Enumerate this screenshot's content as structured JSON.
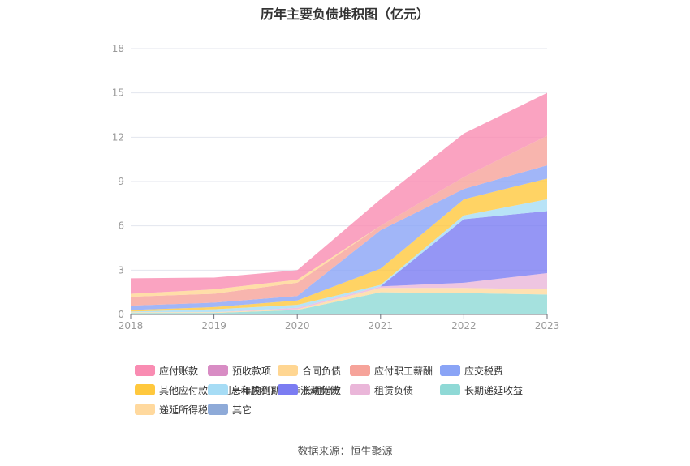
{
  "chart_data": {
    "type": "area",
    "stacked": true,
    "title": "历年主要负债堆积图（亿元）",
    "source": "数据来源：恒生聚源",
    "x": [
      "2018",
      "2019",
      "2020",
      "2021",
      "2022",
      "2023"
    ],
    "ylim": [
      0,
      18
    ],
    "yticks": [
      0,
      3,
      6,
      9,
      12,
      15,
      18
    ],
    "grid": true,
    "legend_position": "bottom",
    "series": [
      {
        "name": "长期递延收益",
        "color": "#8fd9d6",
        "values": [
          0.1,
          0.1,
          0.3,
          1.5,
          1.45,
          1.35
        ]
      },
      {
        "name": "递延所得税负债",
        "color": "#ffd99e",
        "values": [
          0.05,
          0.05,
          0.05,
          0.3,
          0.35,
          0.35
        ]
      },
      {
        "name": "其它",
        "color": "#8eaad8",
        "values": [
          0,
          0,
          0,
          0,
          0,
          0
        ]
      },
      {
        "name": "租赁负债",
        "color": "#eab6d9",
        "values": [
          0,
          0,
          0.1,
          0.1,
          0.35,
          1.1
        ]
      },
      {
        "name": "长期借款",
        "color": "#7b7cf2",
        "values": [
          0,
          0,
          0,
          0,
          4.3,
          4.2
        ]
      },
      {
        "name": "一年内到期的非流动负债",
        "color": "#a6dcf5",
        "values": [
          0.05,
          0.2,
          0.2,
          0.1,
          0.25,
          0.8
        ]
      },
      {
        "name": "其他应付款(含利息和股利)",
        "color": "#ffc83d",
        "values": [
          0.1,
          0.15,
          0.3,
          1.1,
          1.1,
          1.4
        ]
      },
      {
        "name": "应交税费",
        "color": "#8aa4f6",
        "values": [
          0.3,
          0.3,
          0.3,
          2.6,
          0.7,
          0.9
        ]
      },
      {
        "name": "应付职工薪酬",
        "color": "#f6a39a",
        "values": [
          0.6,
          0.6,
          0.9,
          0.3,
          0.8,
          2.0
        ]
      },
      {
        "name": "合同负债",
        "color": "#ffd692",
        "values": [
          0.2,
          0.3,
          0.2,
          0,
          0,
          0
        ]
      },
      {
        "name": "预收款项",
        "color": "#d88cc4",
        "values": [
          0,
          0,
          0,
          0,
          0,
          0
        ]
      },
      {
        "name": "应付账款",
        "color": "#f98cb2",
        "values": [
          1.05,
          0.8,
          0.65,
          1.8,
          2.95,
          2.9
        ]
      }
    ]
  },
  "legend_order": [
    "应付账款",
    "预收款项",
    "合同负债",
    "应付职工薪酬",
    "应交税费",
    "其他应付款(含利息和股利)",
    "一年内到期的非流动负债",
    "长期借款",
    "租赁负债",
    "长期递延收益",
    "递延所得税负债",
    "其它"
  ]
}
